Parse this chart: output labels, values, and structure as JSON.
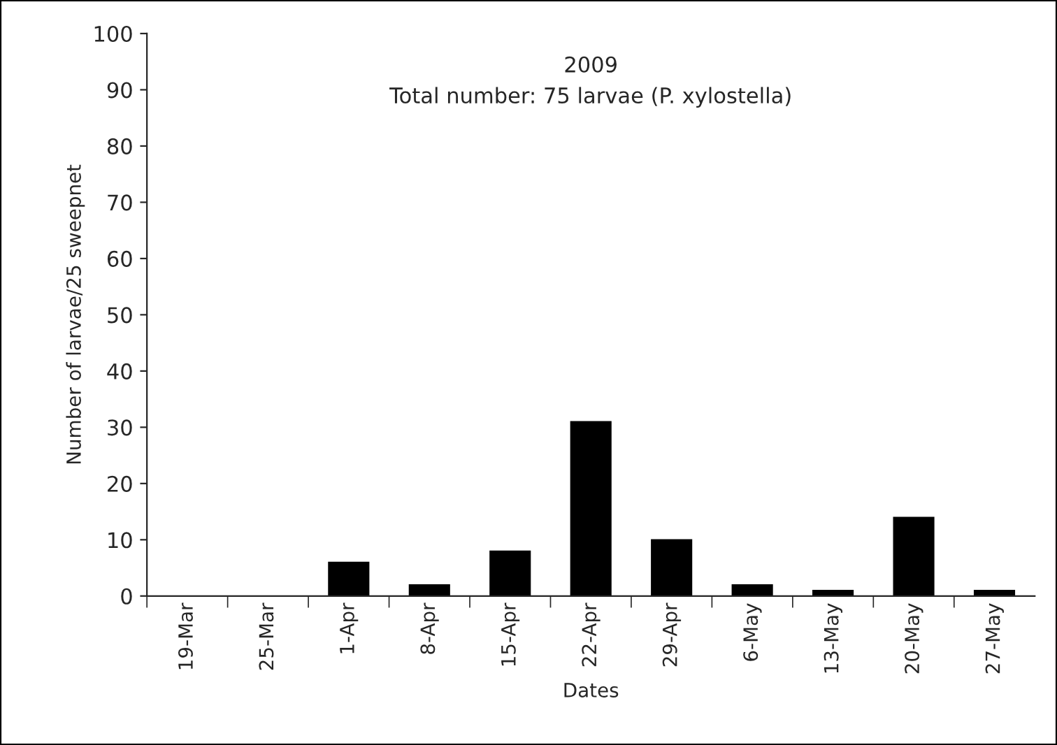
{
  "chart_data": {
    "type": "bar",
    "title": "2009",
    "subtitle": "Total number: 75 larvae (P. xylostella)",
    "xlabel": "Dates",
    "ylabel": "Number of larvae/25 sweepnet",
    "categories": [
      "19-Mar",
      "25-Mar",
      "1-Apr",
      "8-Apr",
      "15-Apr",
      "22-Apr",
      "29-Apr",
      "6-May",
      "13-May",
      "20-May",
      "27-May"
    ],
    "values": [
      0,
      0,
      6,
      2,
      8,
      31,
      10,
      2,
      1,
      14,
      1
    ],
    "color": "#000000",
    "ylim": [
      0,
      100
    ],
    "yticks": [
      0,
      10,
      20,
      30,
      40,
      50,
      60,
      70,
      80,
      90,
      100
    ],
    "grid": false
  }
}
